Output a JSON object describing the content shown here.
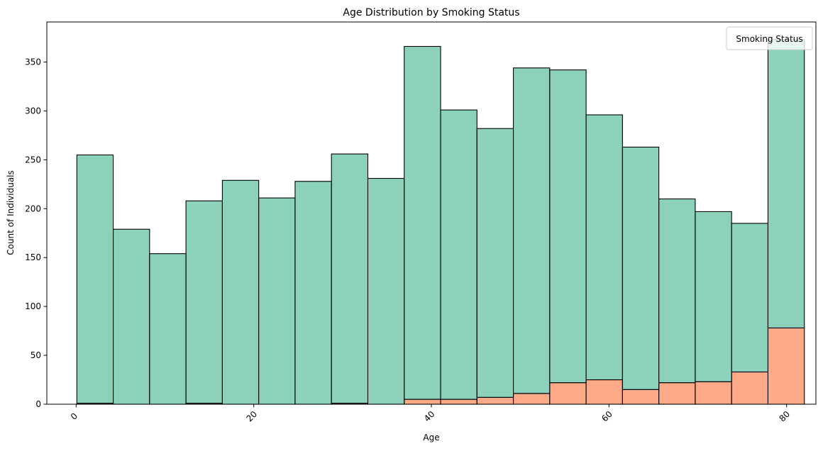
{
  "chart_data": {
    "type": "bar",
    "stacked": true,
    "title": "Age Distribution by Smoking Status",
    "xlabel": "Age",
    "ylabel": "Count of Individuals",
    "legend_title": "Smoking Status",
    "legend_position": "top-right",
    "grid": false,
    "xlim": [
      -3.3,
      83.3
    ],
    "ylim": [
      0,
      391
    ],
    "x_ticks": [
      0,
      20,
      40,
      60,
      80
    ],
    "x_tick_labels": [
      "0",
      "20",
      "40",
      "60",
      "80"
    ],
    "y_ticks": [
      0,
      50,
      100,
      150,
      200,
      250,
      300,
      350
    ],
    "y_tick_labels": [
      "0",
      "50",
      "100",
      "150",
      "200",
      "250",
      "300",
      "350"
    ],
    "bin_edges": [
      0.08,
      4.176,
      8.272,
      12.368,
      16.464,
      20.56,
      24.656,
      28.752,
      32.848,
      36.944,
      41.04,
      45.136,
      49.232,
      53.328,
      57.424,
      61.52,
      65.616,
      69.712,
      73.808,
      77.904,
      82.0
    ],
    "series": [
      {
        "color": "#fc8d62",
        "values": [
          1,
          0,
          0,
          1,
          0,
          0,
          0,
          1,
          0,
          5,
          5,
          7,
          11,
          22,
          25,
          15,
          22,
          23,
          33,
          78
        ]
      },
      {
        "color": "#66c2a5",
        "values": [
          254,
          179,
          154,
          207,
          229,
          211,
          228,
          255,
          231,
          361,
          296,
          275,
          333,
          320,
          271,
          248,
          188,
          174,
          152,
          295
        ]
      }
    ]
  }
}
